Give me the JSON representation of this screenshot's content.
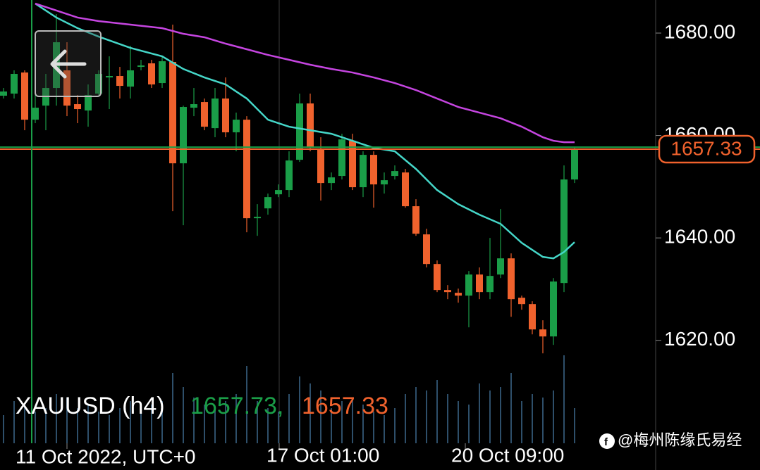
{
  "chart_data": {
    "type": "candlestick",
    "symbol": "XAUUSD (h4)",
    "bid": {
      "value": 1657.73,
      "label": "1657.73,"
    },
    "ask": 1657.33,
    "up_color": "#1a9e48",
    "down_color": "#f0622d",
    "open": [
      1667.77,
      1668.18,
      1672.3,
      1663.09,
      1665.84,
      1669.28,
      1672.72,
      1666.12,
      1664.88,
      1668.18,
      1671.34,
      1671.62,
      1669.55,
      1673.4,
      1674.09,
      1670.24,
      1674.37,
      1654.57,
      1665.43,
      1666.53,
      1661.44,
      1667.22,
      1660.62,
      1663.09,
      1643.85,
      1645.77,
      1648.52,
      1649.35,
      1655.26,
      1666.26,
      1657.32,
      1650.72,
      1652.1,
      1658.97,
      1649.9,
      1656.22,
      1650.45,
      1652.1,
      1652.78,
      1646.19,
      1640.69,
      1634.91,
      1629.83,
      1629.28,
      1628.73,
      1632.85,
      1629.42,
      1632.85,
      1636.01,
      1628.32,
      1627.08,
      1622.13,
      1620.76,
      1631.2,
      1651.41
    ],
    "high": [
      1669.28,
      1672.72,
      1672.72,
      1669.28,
      1672.03,
      1683.71,
      1678.21,
      1667.9,
      1669.97,
      1672.72,
      1675.46,
      1673.4,
      1677.53,
      1674.78,
      1674.78,
      1675.46,
      1681.65,
      1665.84,
      1669.28,
      1667.22,
      1669.28,
      1671.34,
      1664.47,
      1663.78,
      1646.6,
      1648.66,
      1650.45,
      1656.91,
      1668.18,
      1668.18,
      1659.66,
      1652.78,
      1660.34,
      1660.34,
      1656.91,
      1656.91,
      1652.78,
      1654.16,
      1653.47,
      1647.56,
      1641.79,
      1635.6,
      1630.79,
      1630.1,
      1633.54,
      1634.23,
      1640.0,
      1645.64,
      1636.98,
      1628.73,
      1627.63,
      1623.92,
      1632.16,
      1654.16,
      1657.73
    ],
    "low": [
      1667.22,
      1667.22,
      1661.03,
      1662.41,
      1661.03,
      1665.84,
      1663.78,
      1662.41,
      1661.72,
      1667.9,
      1665.16,
      1667.22,
      1667.22,
      1672.72,
      1669.28,
      1669.28,
      1645.22,
      1642.47,
      1663.78,
      1661.03,
      1659.66,
      1659.66,
      1656.91,
      1641.1,
      1640.41,
      1644.54,
      1647.97,
      1647.97,
      1654.85,
      1656.91,
      1647.29,
      1649.35,
      1651.41,
      1649.35,
      1647.97,
      1645.91,
      1648.66,
      1651.41,
      1645.91,
      1640.41,
      1634.23,
      1629.42,
      1628.04,
      1627.35,
      1622.54,
      1628.04,
      1628.04,
      1632.16,
      1624.6,
      1625.98,
      1621.17,
      1617.46,
      1619.11,
      1629.42,
      1650.72
    ],
    "close": [
      1668.59,
      1672.03,
      1663.09,
      1665.43,
      1669.28,
      1678.21,
      1665.84,
      1665.16,
      1667.9,
      1672.03,
      1671.62,
      1669.69,
      1672.72,
      1673.68,
      1669.97,
      1674.5,
      1654.57,
      1665.57,
      1666.12,
      1661.72,
      1667.22,
      1660.62,
      1663.09,
      1643.85,
      1644.12,
      1647.97,
      1649.35,
      1655.12,
      1666.26,
      1657.59,
      1650.72,
      1651.82,
      1659.24,
      1649.9,
      1656.22,
      1650.45,
      1651.27,
      1653.06,
      1646.19,
      1640.82,
      1634.91,
      1629.83,
      1629.42,
      1628.73,
      1632.85,
      1629.42,
      1632.58,
      1636.01,
      1628.04,
      1627.08,
      1622.13,
      1620.76,
      1631.48,
      1651.41,
      1657.33
    ],
    "volume": [
      40,
      60,
      55,
      45,
      50,
      70,
      65,
      50,
      55,
      45,
      40,
      50,
      60,
      45,
      55,
      60,
      100,
      80,
      65,
      55,
      50,
      60,
      70,
      110,
      60,
      50,
      45,
      70,
      95,
      85,
      75,
      50,
      60,
      65,
      55,
      45,
      40,
      50,
      70,
      80,
      75,
      90,
      70,
      60,
      55,
      85,
      75,
      80,
      100,
      60,
      70,
      65,
      75,
      125,
      50
    ],
    "volume_color": "#2e4f6a",
    "lines": [
      {
        "color": "#45d6c8",
        "x": [
          3,
          5,
          7,
          9,
          12,
          15,
          17,
          19,
          21,
          23,
          25,
          27,
          29,
          31,
          33,
          35,
          37,
          39,
          41,
          43,
          45,
          47,
          49,
          51,
          52,
          53,
          54
        ],
        "values": [
          1685.77,
          1683.03,
          1680.96,
          1679.31,
          1677.11,
          1675.46,
          1672.99,
          1671.34,
          1669.97,
          1667.22,
          1663.09,
          1661.72,
          1661.03,
          1660.34,
          1658.97,
          1657.59,
          1656.91,
          1653.47,
          1649.35,
          1646.6,
          1644.54,
          1642.75,
          1639.04,
          1636.29,
          1636.01,
          1637.25,
          1639.18
        ]
      },
      {
        "color": "#c545e0",
        "x": [
          3,
          5,
          7,
          9,
          12,
          15,
          17,
          19,
          21,
          23,
          25,
          27,
          29,
          31,
          33,
          35,
          37,
          39,
          41,
          43,
          45,
          47,
          49,
          51,
          52,
          53,
          54
        ],
        "values": [
          1685.77,
          1684.4,
          1683.03,
          1682.34,
          1681.65,
          1680.96,
          1679.86,
          1679.18,
          1677.94,
          1676.84,
          1675.74,
          1674.78,
          1673.82,
          1672.99,
          1672.3,
          1671.34,
          1670.24,
          1668.87,
          1667.22,
          1665.57,
          1664.47,
          1663.37,
          1661.72,
          1659.66,
          1658.97,
          1658.69,
          1658.69
        ]
      }
    ],
    "ylim": [
      1599.9,
      1686.46
    ],
    "yticks": [
      {
        "value": 1620,
        "label": "1620.00"
      },
      {
        "value": 1640,
        "label": "1640.00"
      },
      {
        "value": 1660,
        "label": "1660.00"
      },
      {
        "value": 1680,
        "label": "1680.00"
      }
    ],
    "x_labels": [
      "11 Oct 2022, UTC+0",
      "17 Oct 01:00",
      "20 Oct 09:00"
    ],
    "watermark": "@梅州陈缘氏易经"
  }
}
